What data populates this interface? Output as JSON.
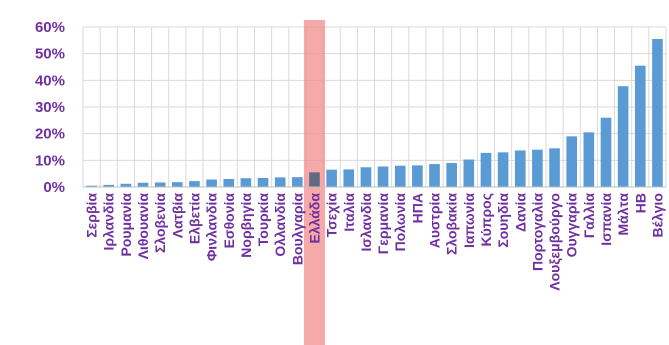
{
  "chart_data": {
    "type": "bar",
    "title": "",
    "xlabel": "",
    "ylabel": "",
    "ylim": [
      0,
      0.6
    ],
    "y_ticks": [
      0,
      0.1,
      0.2,
      0.3,
      0.4,
      0.5,
      0.6
    ],
    "y_tick_labels": [
      "0%",
      "10%",
      "20%",
      "30%",
      "40%",
      "50%",
      "60%"
    ],
    "grid": true,
    "highlight_category": "Ελλάδα",
    "categories": [
      "Σερβία",
      "Ιρλανδία",
      "Ρουμανία",
      "Λιθουανία",
      "Σλοβενία",
      "Λατβία",
      "Ελβετία",
      "Φινλανδία",
      "Εσθονία",
      "Νορβηγία",
      "Τουρκία",
      "Ολλανδία",
      "Βουλγαρία",
      "Ελλάδα",
      "Τσεχία",
      "Ιταλία",
      "Ισλανδία",
      "Γερμανία",
      "Πολωνία",
      "ΗΠΑ",
      "Αυστρία",
      "Σλοβακία",
      "Ιαπωνία",
      "Κύπρος",
      "Σουηδία",
      "Δανία",
      "Πορτογαλία",
      "Λουξεμβούργο",
      "Ουγγαρία",
      "Γαλλία",
      "Ισπανία",
      "Μάλτα",
      "ΗΒ",
      "Βέλγιο"
    ],
    "values": [
      0.005,
      0.008,
      0.012,
      0.016,
      0.017,
      0.018,
      0.022,
      0.028,
      0.03,
      0.033,
      0.034,
      0.036,
      0.037,
      0.055,
      0.065,
      0.066,
      0.074,
      0.077,
      0.08,
      0.081,
      0.086,
      0.09,
      0.103,
      0.128,
      0.13,
      0.137,
      0.14,
      0.145,
      0.19,
      0.205,
      0.26,
      0.378,
      0.455,
      0.555
    ],
    "colors": {
      "bar": "#5B9BD5",
      "highlight_bar": "#5E6B82",
      "highlight_band": "#F28C8C",
      "axis_text": "#7030A0",
      "grid": "#D9D9D9",
      "axis_line": "#BFBFBF"
    }
  }
}
